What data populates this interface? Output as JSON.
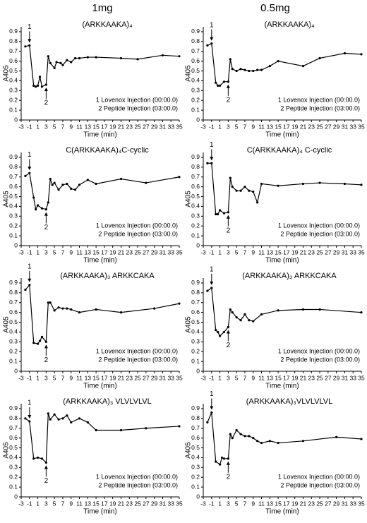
{
  "column_titles": [
    "1mg",
    "0.5mg"
  ],
  "chart_data": [
    {
      "type": "line",
      "title": "(ARKKAAKA)₄",
      "x_label": "Time (min)",
      "y_label": "A405",
      "color": "#000000",
      "x": [
        -2,
        -1,
        0,
        0.5,
        1,
        1.5,
        2,
        3,
        3.5,
        4,
        5,
        5.5,
        6.5,
        7,
        8,
        9,
        10,
        11,
        13,
        15,
        21,
        25,
        31,
        35
      ],
      "values": [
        0.75,
        0.76,
        0.35,
        0.34,
        0.35,
        0.44,
        0.34,
        0.36,
        0.65,
        0.58,
        0.53,
        0.59,
        0.58,
        0.56,
        0.61,
        0.59,
        0.63,
        0.63,
        0.64,
        0.64,
        0.63,
        0.62,
        0.66,
        0.65
      ],
      "xlim": [
        -3,
        35
      ],
      "xticks": [
        -3,
        -1,
        1,
        3,
        5,
        7,
        9,
        11,
        13,
        15,
        17,
        19,
        21,
        23,
        25,
        27,
        29,
        31,
        33,
        35
      ],
      "ylim": [
        0,
        0.95
      ],
      "yticks": [
        0,
        0.1,
        0.2,
        0.3,
        0.4,
        0.5,
        0.6,
        0.7,
        0.8,
        0.9
      ],
      "markers": [
        "1",
        "2"
      ],
      "notes": [
        "1 Lovenox Injection (00:00.0)",
        "2 Peptide Injection (03:00.0)"
      ]
    },
    {
      "type": "line",
      "title": "(ARKKAAKA)₄",
      "x_label": "Time (min)",
      "y_label": "A405",
      "color": "#000000",
      "x": [
        -2,
        -1,
        0,
        0.5,
        1,
        2,
        3,
        3.5,
        4,
        5,
        6,
        7,
        8,
        9,
        10,
        11,
        13,
        15,
        21,
        25,
        31,
        35
      ],
      "values": [
        0.76,
        0.78,
        0.38,
        0.35,
        0.35,
        0.39,
        0.39,
        0.62,
        0.52,
        0.5,
        0.52,
        0.51,
        0.5,
        0.5,
        0.51,
        0.51,
        0.55,
        0.6,
        0.55,
        0.63,
        0.68,
        0.67
      ],
      "xlim": [
        -3,
        35
      ],
      "xticks": [
        -3,
        -1,
        1,
        3,
        5,
        7,
        9,
        11,
        13,
        15,
        17,
        19,
        21,
        23,
        25,
        27,
        29,
        31,
        33,
        35
      ],
      "ylim": [
        0,
        0.95
      ],
      "yticks": [
        0,
        0.1,
        0.2,
        0.3,
        0.4,
        0.5,
        0.6,
        0.7,
        0.8,
        0.9
      ],
      "markers": [
        "1",
        "2"
      ],
      "notes": [
        "1 Lovenox Injection (00:00.0)",
        "2 Peptide Injection (03:00.0)"
      ]
    },
    {
      "type": "line",
      "title": "C(ARKKAAKA)₄C-cyclic",
      "x_label": "Time (min)",
      "y_label": "A405",
      "color": "#000000",
      "x": [
        -2,
        -1,
        0,
        0.5,
        1,
        2,
        3,
        3.5,
        4,
        4.5,
        5,
        6,
        7,
        8,
        9,
        10,
        11,
        13,
        15,
        21,
        27,
        35
      ],
      "values": [
        0.71,
        0.74,
        0.49,
        0.37,
        0.41,
        0.38,
        0.37,
        0.44,
        0.68,
        0.62,
        0.64,
        0.57,
        0.62,
        0.63,
        0.58,
        0.57,
        0.62,
        0.67,
        0.63,
        0.68,
        0.64,
        0.7
      ],
      "xlim": [
        -3,
        35
      ],
      "xticks": [
        -3,
        -1,
        1,
        3,
        5,
        7,
        9,
        11,
        13,
        15,
        17,
        19,
        21,
        23,
        25,
        27,
        29,
        31,
        33,
        35
      ],
      "ylim": [
        0,
        0.95
      ],
      "yticks": [
        0,
        0.1,
        0.2,
        0.3,
        0.4,
        0.5,
        0.6,
        0.7,
        0.8,
        0.9
      ],
      "markers": [
        "1",
        "2"
      ],
      "notes": [
        "1 Lovenox Injection (00:00.0)",
        "2 Peptide Injection (03:00.0)"
      ]
    },
    {
      "type": "line",
      "title": "C(ARKKAAKA)₄ C-cyclic",
      "x_label": "Time (min)",
      "y_label": "A405",
      "color": "#000000",
      "x": [
        -2,
        -1,
        0,
        0.5,
        1,
        2,
        3,
        3.5,
        4,
        5,
        6,
        7,
        8,
        9,
        10,
        11,
        15,
        21,
        25,
        31,
        35
      ],
      "values": [
        0.84,
        0.84,
        0.32,
        0.32,
        0.36,
        0.33,
        0.34,
        0.69,
        0.6,
        0.56,
        0.56,
        0.6,
        0.56,
        0.55,
        0.44,
        0.63,
        0.61,
        0.63,
        0.64,
        0.63,
        0.62
      ],
      "xlim": [
        -3,
        35
      ],
      "xticks": [
        -3,
        -1,
        1,
        3,
        5,
        7,
        9,
        11,
        13,
        15,
        17,
        19,
        21,
        23,
        25,
        27,
        29,
        31,
        33,
        35
      ],
      "ylim": [
        0,
        0.95
      ],
      "yticks": [
        0,
        0.1,
        0.2,
        0.3,
        0.4,
        0.5,
        0.6,
        0.7,
        0.8,
        0.9
      ],
      "markers": [
        "1",
        "2"
      ],
      "notes": [
        "1 Lovenox Injection (00:00.0)",
        "2 Peptide Injection (03:00.0)"
      ]
    },
    {
      "type": "line",
      "title": "(ARKKAAKA)₃ ARKKCAKA",
      "x_label": "Time (min)",
      "y_label": "A405",
      "color": "#000000",
      "x": [
        -2,
        -1,
        0,
        1,
        1.5,
        2,
        3,
        3.5,
        4,
        5,
        6,
        7,
        8,
        9,
        11,
        15,
        21,
        29,
        35
      ],
      "values": [
        0.83,
        0.88,
        0.29,
        0.28,
        0.31,
        0.35,
        0.3,
        0.7,
        0.7,
        0.62,
        0.65,
        0.64,
        0.64,
        0.63,
        0.6,
        0.63,
        0.6,
        0.64,
        0.69
      ],
      "xlim": [
        -3,
        35
      ],
      "xticks": [
        -3,
        -1,
        1,
        3,
        5,
        7,
        9,
        11,
        13,
        15,
        17,
        19,
        21,
        23,
        25,
        27,
        29,
        31,
        33,
        35
      ],
      "ylim": [
        0,
        0.95
      ],
      "yticks": [
        0,
        0.1,
        0.2,
        0.3,
        0.4,
        0.5,
        0.6,
        0.7,
        0.8,
        0.9
      ],
      "markers": [
        "1",
        "2"
      ],
      "notes": [
        "1 Lovenox Injection (00:00.0)",
        "2 Peptide Injection (03:00.0)"
      ]
    },
    {
      "type": "line",
      "title": "(ARKKAAKA)₃ ARKKCAKA",
      "x_label": "Time (min)",
      "y_label": "A405",
      "color": "#000000",
      "x": [
        -2,
        -1,
        0,
        0.5,
        1,
        2,
        3,
        3.5,
        4,
        5,
        6,
        7,
        8,
        9,
        11,
        15,
        21,
        25,
        35
      ],
      "values": [
        0.82,
        0.85,
        0.42,
        0.4,
        0.36,
        0.4,
        0.45,
        0.63,
        0.6,
        0.55,
        0.52,
        0.58,
        0.52,
        0.51,
        0.58,
        0.62,
        0.63,
        0.63,
        0.6
      ],
      "xlim": [
        -3,
        35
      ],
      "xticks": [
        -3,
        -1,
        1,
        3,
        5,
        7,
        9,
        11,
        13,
        15,
        17,
        19,
        21,
        23,
        25,
        27,
        29,
        31,
        33,
        35
      ],
      "ylim": [
        0,
        0.95
      ],
      "yticks": [
        0,
        0.1,
        0.2,
        0.3,
        0.4,
        0.5,
        0.6,
        0.7,
        0.8,
        0.9
      ],
      "markers": [
        "1",
        "2"
      ],
      "notes": [
        "1 Lovenox Injection (00:00.0)",
        "2 Peptide Injection (03:00.0)"
      ]
    },
    {
      "type": "line",
      "title": "(ARKKAAKA)₃ VLVLVLVL",
      "x_label": "Time (min)",
      "y_label": "A405",
      "color": "#000000",
      "x": [
        -2,
        -1,
        0,
        1,
        2,
        3,
        3.5,
        4,
        5,
        6,
        7,
        8,
        9,
        11,
        13,
        15,
        21,
        27,
        35
      ],
      "values": [
        0.8,
        0.77,
        0.39,
        0.4,
        0.39,
        0.35,
        0.85,
        0.79,
        0.84,
        0.79,
        0.8,
        0.83,
        0.76,
        0.8,
        0.76,
        0.68,
        0.68,
        0.7,
        0.72
      ],
      "xlim": [
        -3,
        35
      ],
      "xticks": [
        -3,
        -1,
        1,
        3,
        5,
        7,
        9,
        11,
        13,
        15,
        17,
        19,
        21,
        23,
        25,
        27,
        29,
        31,
        33,
        35
      ],
      "ylim": [
        0,
        0.95
      ],
      "yticks": [
        0,
        0.1,
        0.2,
        0.3,
        0.4,
        0.5,
        0.6,
        0.7,
        0.8,
        0.9
      ],
      "markers": [
        "1",
        "2"
      ],
      "notes": [
        "1 Lovenox Injection (00:00.0)",
        "2 Peptide Injection (03:00.0)"
      ]
    },
    {
      "type": "line",
      "title": "(ARKKAAKA)₃VLVLVLVL",
      "x_label": "Time (min)",
      "y_label": "A405",
      "color": "#000000",
      "x": [
        -2,
        -1,
        0,
        1,
        1.5,
        2,
        3,
        3.5,
        4,
        5,
        6,
        7,
        8,
        9,
        10,
        11,
        13,
        15,
        21,
        29,
        35
      ],
      "values": [
        0.76,
        0.86,
        0.36,
        0.33,
        0.4,
        0.39,
        0.39,
        0.64,
        0.6,
        0.68,
        0.64,
        0.62,
        0.62,
        0.6,
        0.57,
        0.55,
        0.57,
        0.55,
        0.57,
        0.61,
        0.59
      ],
      "xlim": [
        -3,
        35
      ],
      "xticks": [
        -3,
        -1,
        1,
        3,
        5,
        7,
        9,
        11,
        13,
        15,
        17,
        19,
        21,
        23,
        25,
        27,
        29,
        31,
        33,
        35
      ],
      "ylim": [
        0,
        0.95
      ],
      "yticks": [
        0,
        0.1,
        0.2,
        0.3,
        0.4,
        0.5,
        0.6,
        0.7,
        0.8,
        0.9
      ],
      "markers": [
        "1",
        "2"
      ],
      "notes": [
        "1 Lovenox Injection (00:00.0)",
        "2 Peptide Injection (03:00.0)"
      ]
    }
  ]
}
